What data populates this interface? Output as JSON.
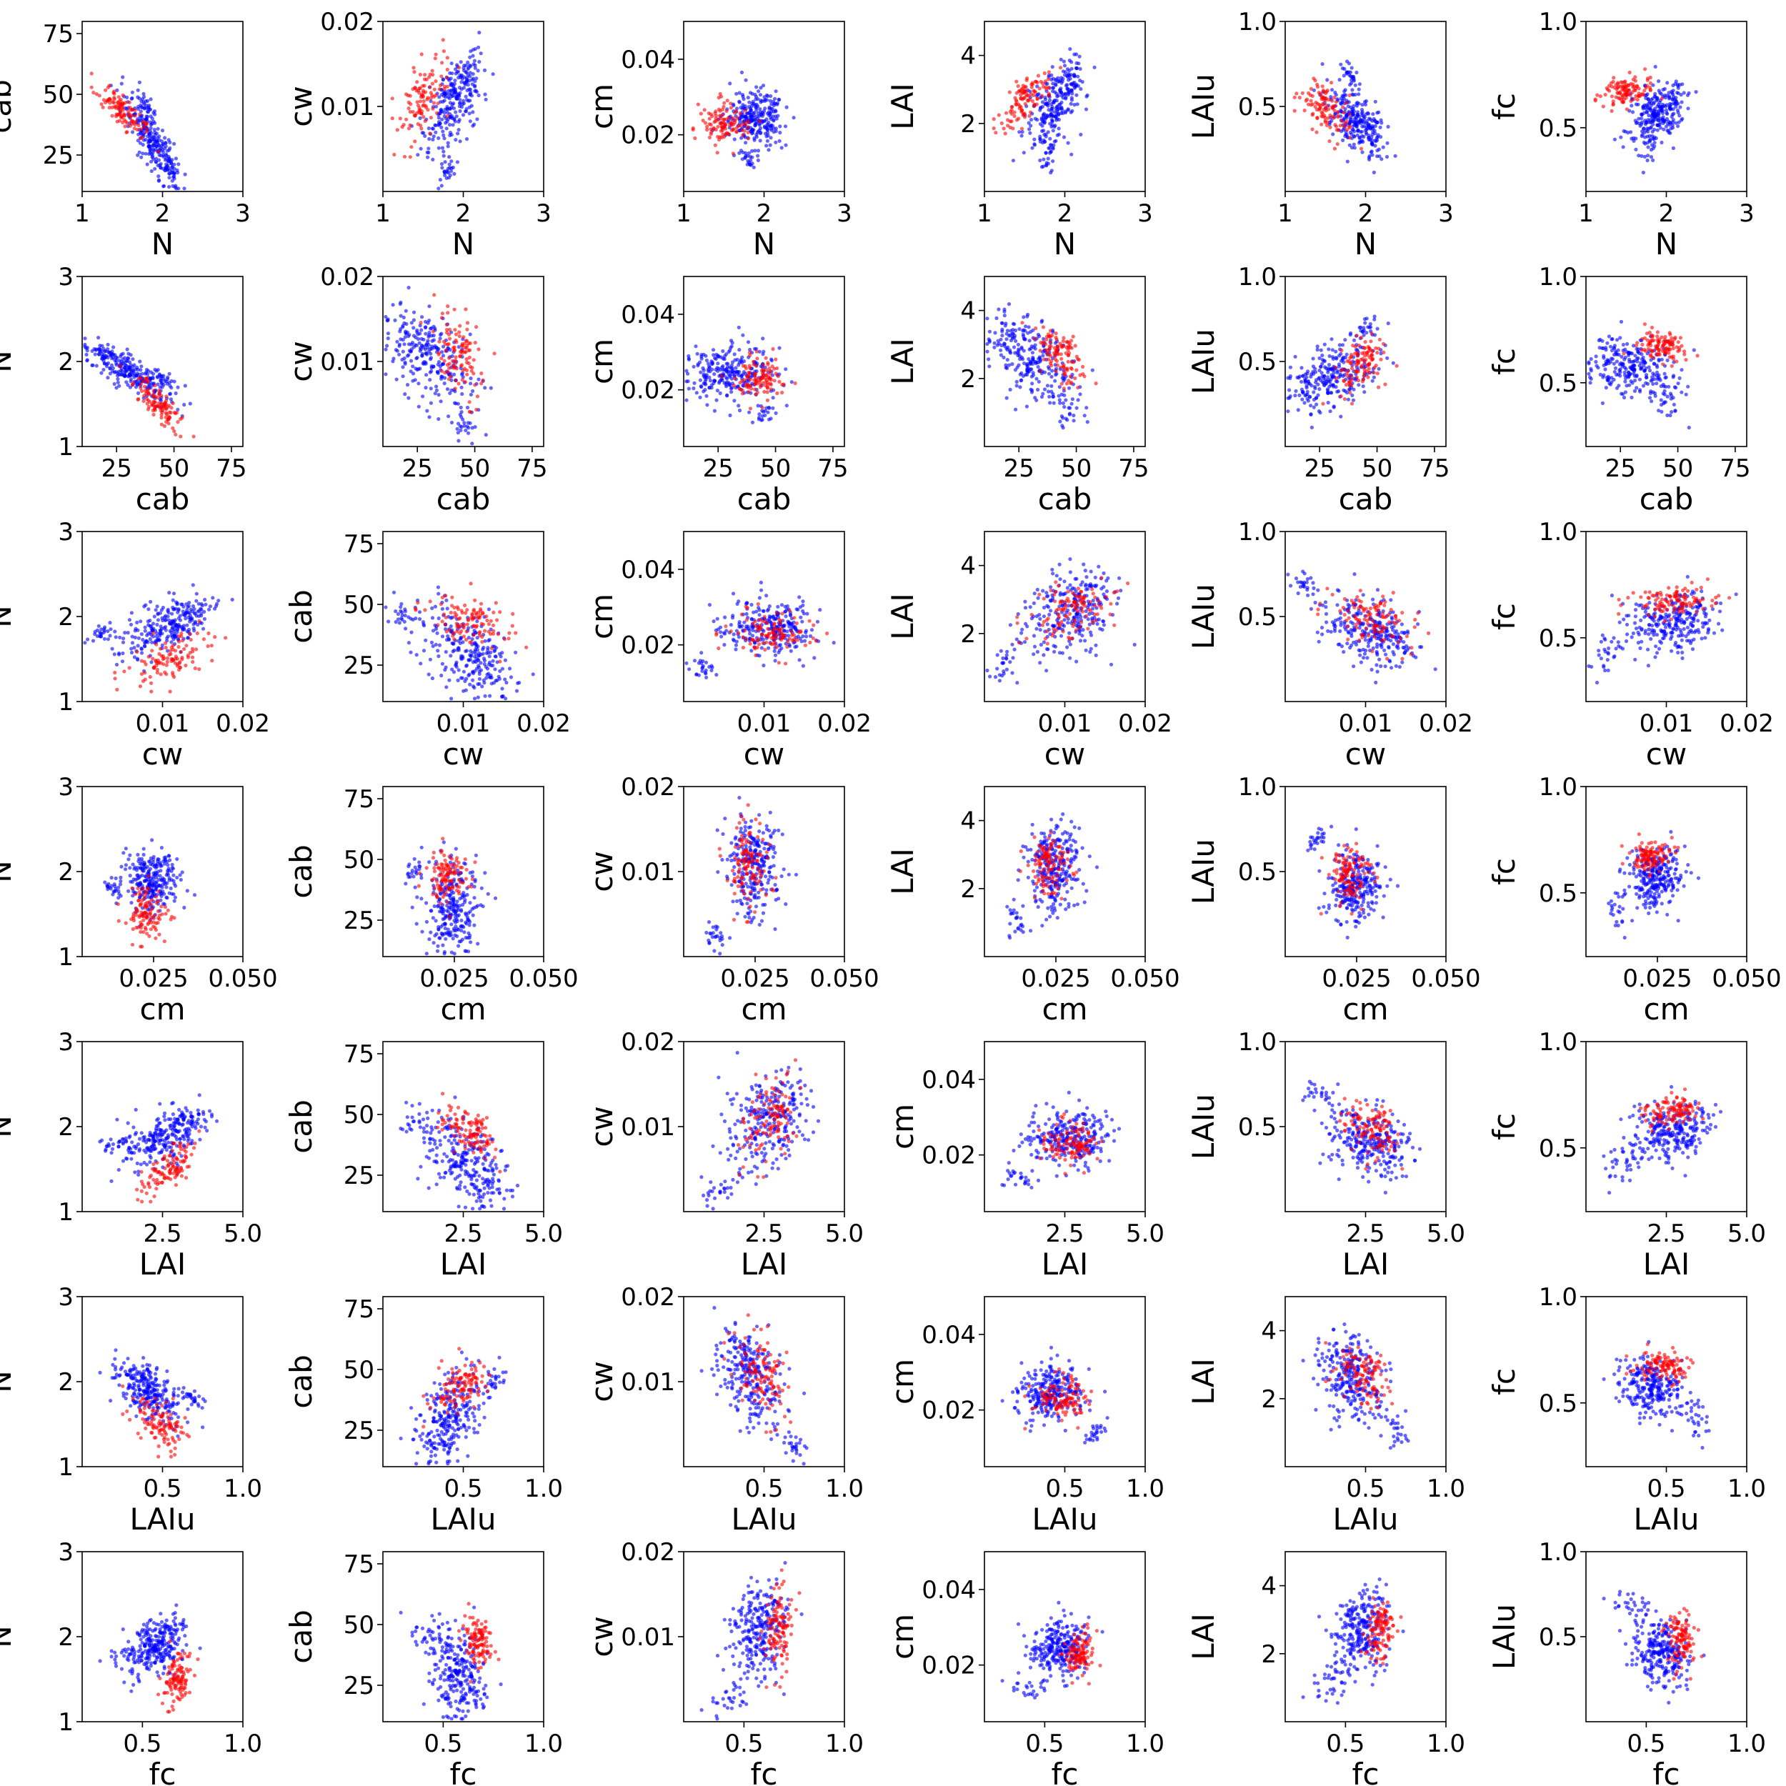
{
  "chart_data": {
    "type": "scatter",
    "layout": "pairwise-grid",
    "rows": 7,
    "cols": 6,
    "variables": {
      "N": {
        "label": "N",
        "lim": [
          1,
          3
        ],
        "ticks": [
          1,
          2,
          3
        ],
        "tick_labels": [
          "1",
          "2",
          "3"
        ]
      },
      "cab": {
        "label": "cab",
        "lim": [
          10,
          80
        ],
        "ticks": [
          25,
          50,
          75
        ],
        "tick_labels": [
          "25",
          "50",
          "75"
        ]
      },
      "cw": {
        "label": "cw",
        "lim": [
          0.0,
          0.02
        ],
        "ticks": [
          0.01,
          0.02
        ],
        "tick_labels": [
          "0.01",
          "0.02"
        ]
      },
      "cm": {
        "label": "cm",
        "lim": [
          0.005,
          0.05
        ],
        "ticks": [
          0.02,
          0.04
        ],
        "tick_labels": [
          "0.02",
          "0.04"
        ]
      },
      "cm_x": {
        "label": "cm",
        "lim": [
          0.005,
          0.05
        ],
        "ticks": [
          0.025,
          0.05
        ],
        "tick_labels": [
          "0.025",
          "0.050"
        ]
      },
      "LAI": {
        "label": "LAI",
        "lim": [
          0,
          5
        ],
        "ticks": [
          2,
          4
        ],
        "tick_labels": [
          "2",
          "4"
        ]
      },
      "LAI_x": {
        "label": "LAI",
        "lim": [
          0,
          5
        ],
        "ticks": [
          2.5,
          5.0
        ],
        "tick_labels": [
          "2.5",
          "5.0"
        ]
      },
      "LAIu": {
        "label": "LAIu",
        "lim": [
          0,
          1
        ],
        "ticks": [
          0.5,
          1.0
        ],
        "tick_labels": [
          "0.5",
          "1.0"
        ]
      },
      "fc": {
        "label": "fc",
        "lim": [
          0.2,
          1
        ],
        "ticks": [
          0.5,
          1.0
        ],
        "tick_labels": [
          "0.5",
          "1.0"
        ]
      }
    },
    "panel_grid": [
      [
        [
          "N",
          "cab"
        ],
        [
          "N",
          "cw"
        ],
        [
          "N",
          "cm"
        ],
        [
          "N",
          "LAI"
        ],
        [
          "N",
          "LAIu"
        ],
        [
          "N",
          "fc"
        ]
      ],
      [
        [
          "cab",
          "N"
        ],
        [
          "cab",
          "cw"
        ],
        [
          "cab",
          "cm"
        ],
        [
          "cab",
          "LAI"
        ],
        [
          "cab",
          "LAIu"
        ],
        [
          "cab",
          "fc"
        ]
      ],
      [
        [
          "cw",
          "N"
        ],
        [
          "cw",
          "cab"
        ],
        [
          "cw",
          "cm"
        ],
        [
          "cw",
          "LAI"
        ],
        [
          "cw",
          "LAIu"
        ],
        [
          "cw",
          "fc"
        ]
      ],
      [
        [
          "cm_x",
          "N"
        ],
        [
          "cm_x",
          "cab"
        ],
        [
          "cm_x",
          "cw"
        ],
        [
          "cm_x",
          "LAI"
        ],
        [
          "cm_x",
          "LAIu"
        ],
        [
          "cm_x",
          "fc"
        ]
      ],
      [
        [
          "LAI_x",
          "N"
        ],
        [
          "LAI_x",
          "cab"
        ],
        [
          "LAI_x",
          "cw"
        ],
        [
          "LAI_x",
          "cm"
        ],
        [
          "LAI_x",
          "LAIu"
        ],
        [
          "LAI_x",
          "fc"
        ]
      ],
      [
        [
          "LAIu",
          "N"
        ],
        [
          "LAIu",
          "cab"
        ],
        [
          "LAIu",
          "cw"
        ],
        [
          "LAIu",
          "cm"
        ],
        [
          "LAIu",
          "LAI"
        ],
        [
          "LAIu",
          "fc"
        ]
      ],
      [
        [
          "fc",
          "N"
        ],
        [
          "fc",
          "cab"
        ],
        [
          "fc",
          "cw"
        ],
        [
          "fc",
          "cm"
        ],
        [
          "fc",
          "LAI"
        ],
        [
          "fc",
          "LAIu"
        ]
      ]
    ],
    "series": [
      {
        "color": "#0000ff",
        "count": 260
      },
      {
        "color": "#ff0000",
        "count": 110
      }
    ],
    "clusters": {
      "blue": {
        "N": [
          1.88,
          0.18
        ],
        "cab": [
          30,
          10
        ],
        "cw": [
          0.0105,
          0.0028
        ],
        "cm": [
          0.0245,
          0.0038
        ],
        "LAI": [
          2.6,
          0.65
        ],
        "LAIu": [
          0.42,
          0.1
        ],
        "fc": [
          0.57,
          0.07
        ]
      },
      "blue_tail": {
        "N": [
          1.82,
          0.06
        ],
        "cab": [
          45,
          4
        ],
        "cw": [
          0.0025,
          0.0008
        ],
        "cm": [
          0.014,
          0.0015
        ],
        "LAI": [
          1.1,
          0.25
        ],
        "LAIu": [
          0.69,
          0.04
        ],
        "fc": [
          0.42,
          0.05
        ]
      },
      "red": {
        "N": [
          1.5,
          0.16
        ],
        "cab": [
          43,
          5
        ],
        "cw": [
          0.0105,
          0.0025
        ],
        "cm": [
          0.0225,
          0.0028
        ],
        "LAI": [
          2.7,
          0.45
        ],
        "LAIu": [
          0.48,
          0.08
        ],
        "fc": [
          0.67,
          0.035
        ]
      }
    },
    "grid": false,
    "legend": "none"
  }
}
